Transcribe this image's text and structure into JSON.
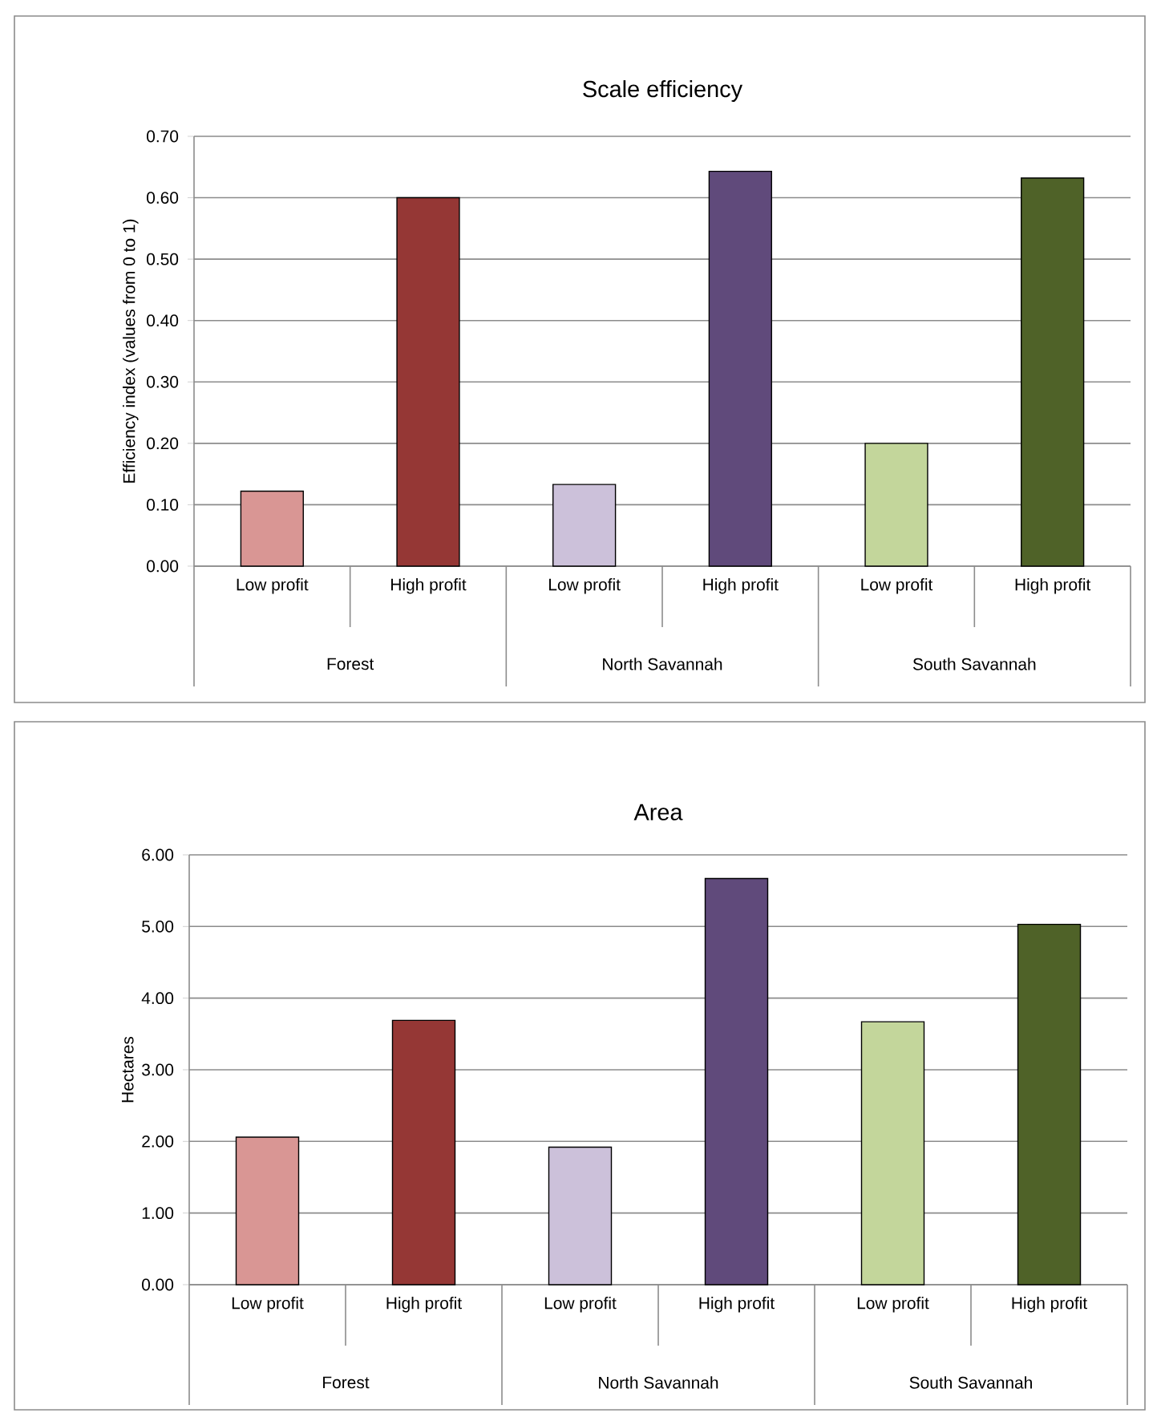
{
  "chart_data": [
    {
      "type": "bar",
      "title": "Scale efficiency",
      "ylabel": "Efficiency index (values from 0 to 1)",
      "categories": [
        "Low profit",
        "High profit",
        "Low profit",
        "High profit",
        "Low profit",
        "High profit"
      ],
      "annotations": [
        "Forest",
        "North Savannah",
        "South Savannah"
      ],
      "values": [
        0.122,
        0.6,
        0.133,
        0.643,
        0.2,
        0.632
      ],
      "colors": [
        "#d99694",
        "#953735",
        "#ccc1da",
        "#604a7b",
        "#c3d69b",
        "#4f6228"
      ],
      "ylim": [
        0,
        0.7
      ],
      "yticks": [
        {
          "value": 0,
          "label": "0.00"
        },
        {
          "value": 0.1,
          "label": "0.10"
        },
        {
          "value": 0.2,
          "label": "0.20"
        },
        {
          "value": 0.3,
          "label": "0.30"
        },
        {
          "value": 0.4,
          "label": "0.40"
        },
        {
          "value": 0.5,
          "label": "0.50"
        },
        {
          "value": 0.6,
          "label": "0.60"
        },
        {
          "value": 0.7,
          "label": "0.70"
        }
      ],
      "grid": "y"
    },
    {
      "type": "bar",
      "title": "Area",
      "ylabel": "Hectares",
      "categories": [
        "Low profit",
        "High profit",
        "Low profit",
        "High profit",
        "Low profit",
        "High profit"
      ],
      "annotations": [
        "Forest",
        "North Savannah",
        "South Savannah"
      ],
      "values": [
        2.06,
        3.69,
        1.92,
        5.67,
        3.67,
        5.03
      ],
      "colors": [
        "#d99694",
        "#953735",
        "#ccc1da",
        "#604a7b",
        "#c3d69b",
        "#4f6228"
      ],
      "ylim": [
        0,
        6
      ],
      "yticks": [
        {
          "value": 0,
          "label": "0.00"
        },
        {
          "value": 1,
          "label": "1.00"
        },
        {
          "value": 2,
          "label": "2.00"
        },
        {
          "value": 3,
          "label": "3.00"
        },
        {
          "value": 4,
          "label": "4.00"
        },
        {
          "value": 5,
          "label": "5.00"
        },
        {
          "value": 6,
          "label": "6.00"
        }
      ],
      "grid": "y"
    }
  ]
}
